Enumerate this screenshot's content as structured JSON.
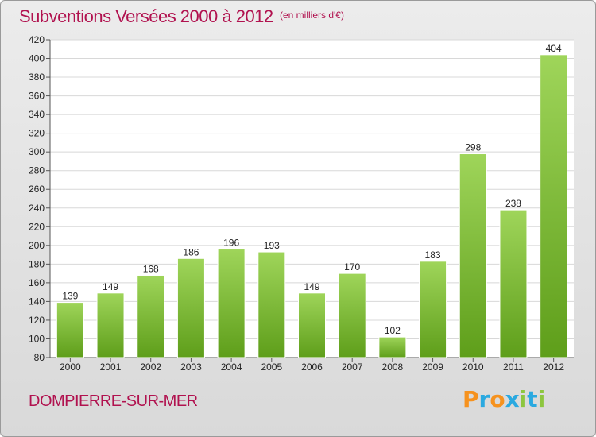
{
  "title": "Subventions Versées 2000 à 2012",
  "unit_note": "(en milliers d'€)",
  "commune": "DOMPIERRE-SUR-MER",
  "logo": {
    "letters": [
      "P",
      "r",
      "o",
      "x",
      "i",
      "t",
      "i"
    ],
    "colors": [
      "#f6921e",
      "#2aa9e0",
      "#f6921e",
      "#2aa9e0",
      "#8dc63f",
      "#2aa9e0",
      "#8dc63f"
    ]
  },
  "colors": {
    "title": "#b1124f",
    "bar_top": "#9fd55a",
    "bar_bottom": "#5e9e1a"
  },
  "chart_data": {
    "type": "bar",
    "title": "Subventions Versées 2000 à 2012",
    "xlabel": "",
    "ylabel": "",
    "categories": [
      "2000",
      "2001",
      "2002",
      "2003",
      "2004",
      "2005",
      "2006",
      "2007",
      "2008",
      "2009",
      "2010",
      "2011",
      "2012"
    ],
    "values": [
      139,
      149,
      168,
      186,
      196,
      193,
      149,
      170,
      102,
      183,
      298,
      238,
      404
    ],
    "ylim": [
      80,
      420
    ],
    "yticks": [
      80,
      100,
      120,
      140,
      160,
      180,
      200,
      220,
      240,
      260,
      280,
      300,
      320,
      340,
      360,
      380,
      400,
      420
    ],
    "grid": true
  }
}
